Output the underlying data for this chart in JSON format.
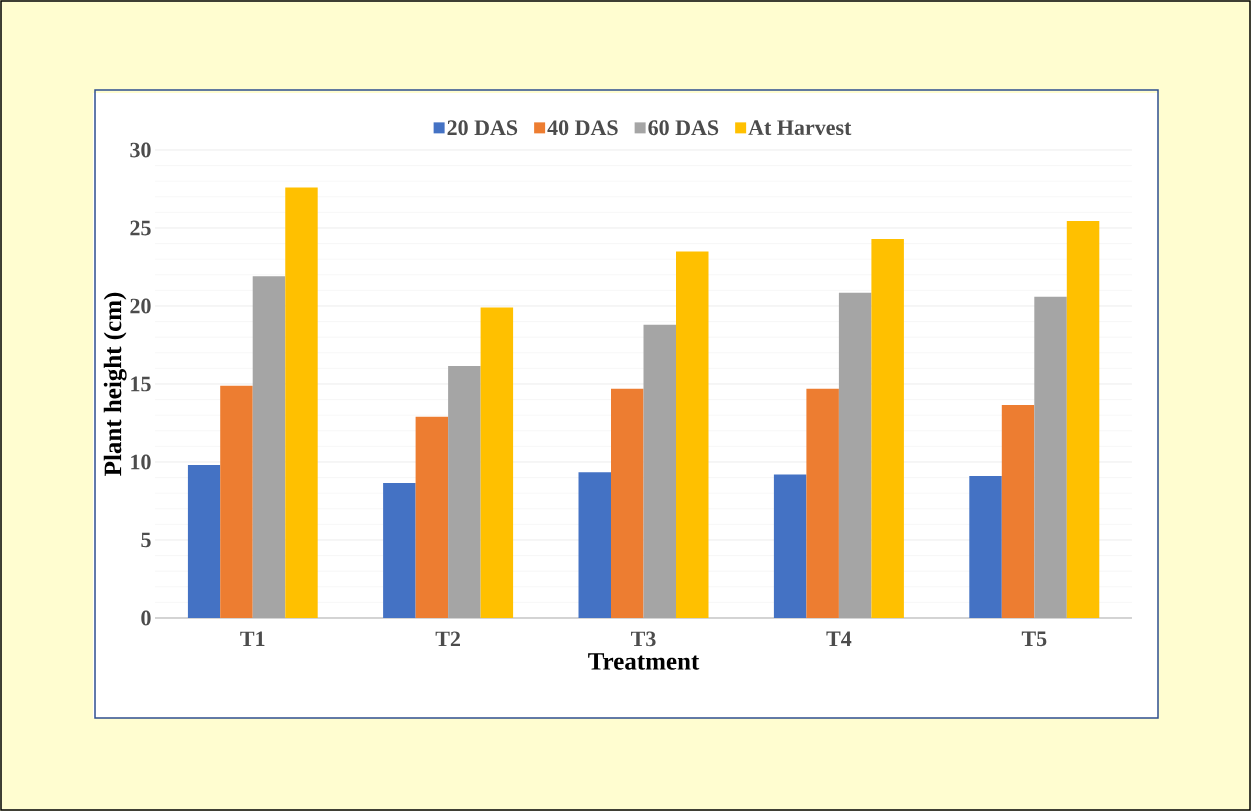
{
  "chart_data": {
    "type": "bar",
    "xlabel": "Treatment",
    "ylabel": "Plant height (cm)",
    "categories": [
      "T1",
      "T2",
      "T3",
      "T4",
      "T5"
    ],
    "series": [
      {
        "name": "20 DAS",
        "color": "#4472c4",
        "values": [
          9.8,
          8.65,
          9.35,
          9.2,
          9.1
        ]
      },
      {
        "name": "40 DAS",
        "color": "#ed7d31",
        "values": [
          14.9,
          12.9,
          14.7,
          14.7,
          13.65
        ]
      },
      {
        "name": "60 DAS",
        "color": "#a5a5a5",
        "values": [
          21.9,
          16.15,
          18.8,
          20.85,
          20.6
        ]
      },
      {
        "name": "At Harvest",
        "color": "#ffc000",
        "values": [
          27.6,
          19.9,
          23.5,
          24.3,
          25.45
        ]
      }
    ],
    "ylim": [
      0,
      30
    ],
    "yticks": [
      0,
      5,
      10,
      15,
      20,
      25,
      30
    ],
    "grid": "y",
    "legend": "top"
  }
}
